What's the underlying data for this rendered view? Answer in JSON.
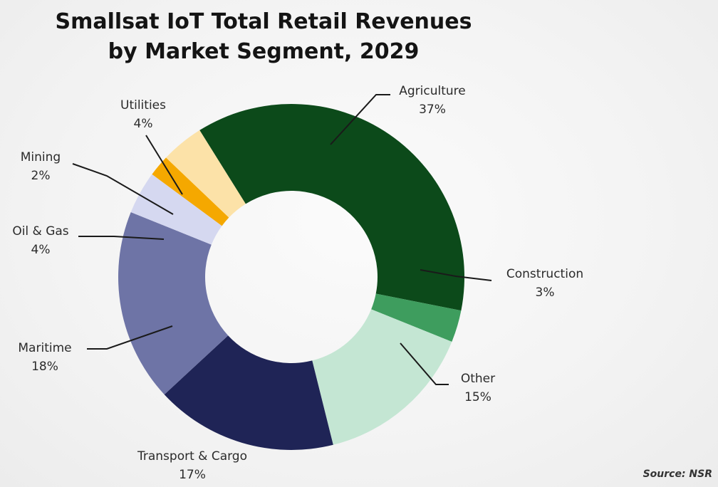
{
  "title_line1": "Smallsat IoT Total Retail Revenues",
  "title_line2": "by Market Segment, 2029",
  "source": "Source: NSR",
  "chart_data": {
    "type": "pie",
    "variant": "donut",
    "title": "Smallsat IoT Total Retail Revenues by Market Segment, 2029",
    "unit": "%",
    "legend": "none (callout labels)",
    "slices": [
      {
        "name": "Agriculture",
        "value": 37,
        "label": "37%",
        "color": "#0c4a1a"
      },
      {
        "name": "Construction",
        "value": 3,
        "label": "3%",
        "color": "#3e9d5e"
      },
      {
        "name": "Other",
        "value": 15,
        "label": "15%",
        "color": "#c4e6d3"
      },
      {
        "name": "Transport & Cargo",
        "value": 17,
        "label": "17%",
        "color": "#1f2456"
      },
      {
        "name": "Maritime",
        "value": 18,
        "label": "18%",
        "color": "#6e74a6"
      },
      {
        "name": "Oil & Gas",
        "value": 4,
        "label": "4%",
        "color": "#d5d8f0"
      },
      {
        "name": "Mining",
        "value": 2,
        "label": "2%",
        "color": "#f5a800"
      },
      {
        "name": "Utilities",
        "value": 4,
        "label": "4%",
        "color": "#fce2a8"
      }
    ]
  }
}
